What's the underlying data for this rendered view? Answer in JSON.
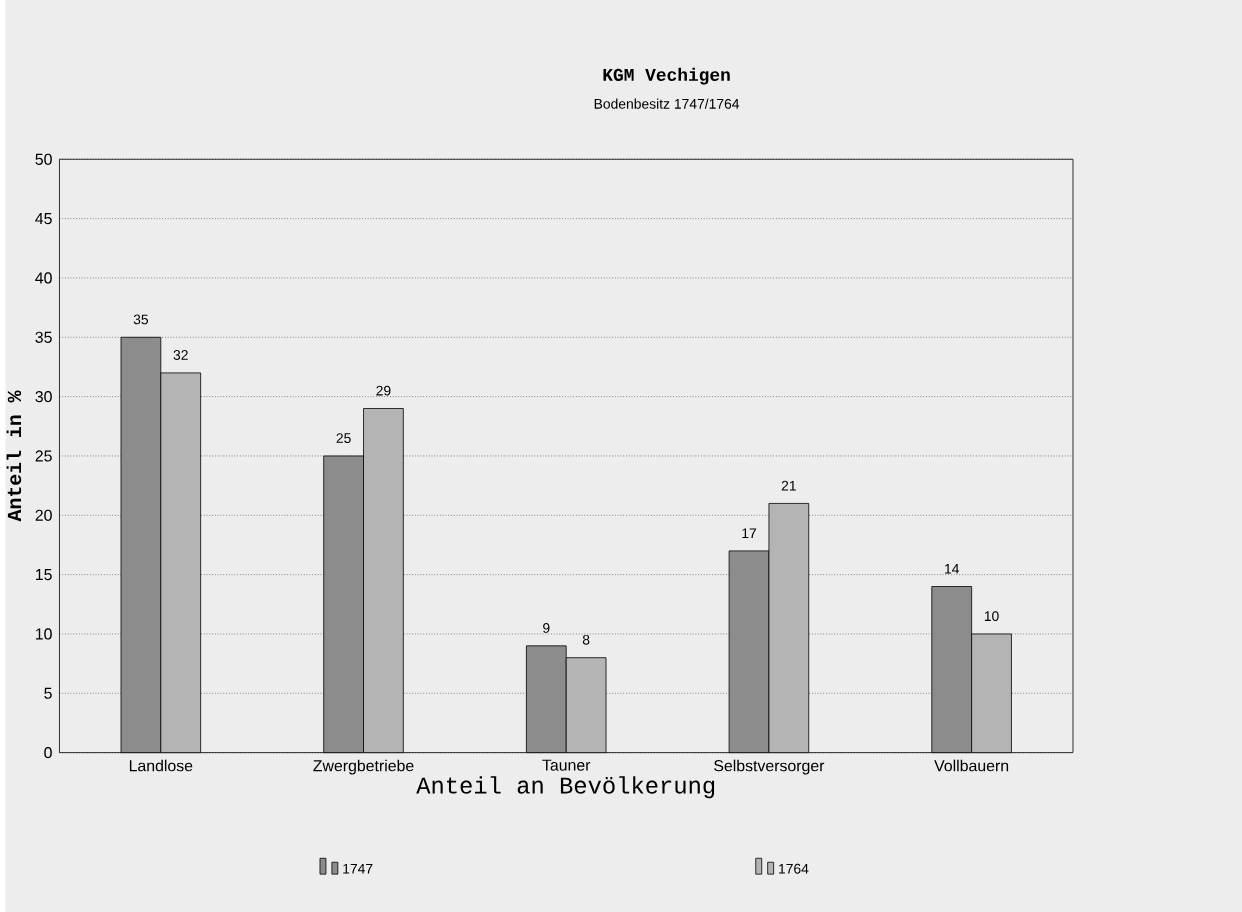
{
  "chart_data": {
    "type": "bar",
    "title": "KGM Vechigen",
    "subtitle": "Bodenbesitz 1747/1764",
    "xlabel": "Anteil an Bevölkerung",
    "ylabel": "Anteil in %",
    "categories": [
      "Landlose",
      "Zwergbetriebe",
      "Tauner",
      "Selbstversorger",
      "Vollbauern"
    ],
    "series": [
      {
        "name": "1747",
        "color": "#8c8c8c",
        "values": [
          35,
          25,
          9,
          17,
          14
        ]
      },
      {
        "name": "1764",
        "color": "#b4b4b4",
        "values": [
          32,
          29,
          8,
          21,
          10
        ]
      }
    ],
    "ylim": [
      0,
      50
    ],
    "yticks": [
      0,
      5,
      10,
      15,
      20,
      25,
      30,
      35,
      40,
      45,
      50
    ],
    "grid": "y",
    "legend": "bottom",
    "data_labels": true
  }
}
